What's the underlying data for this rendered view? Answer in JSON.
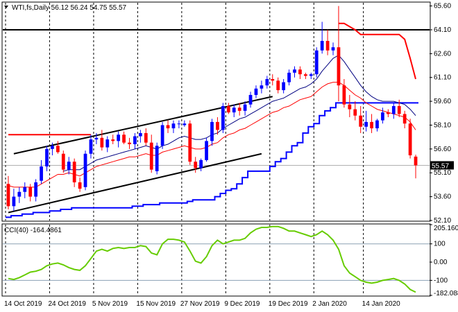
{
  "header": {
    "symbol_line": "WTI,fs,Daily  56.12 56.24 54.75 55.57",
    "cci_label": "CCI(40) -164.4861"
  },
  "chart_data": [
    {
      "type": "candlestick",
      "title": "WTI,fs,Daily",
      "last_ohlc": {
        "open": 56.12,
        "high": 56.24,
        "low": 54.75,
        "close": 55.57
      },
      "ylim": [
        52.1,
        65.8
      ],
      "y_ticks": [
        "65.60",
        "64.10",
        "62.60",
        "61.10",
        "59.60",
        "58.10",
        "56.60",
        "55.10",
        "53.60",
        "52.10"
      ],
      "x_ticks": [
        "14 Oct 2019",
        "24 Oct 2019",
        "5 Nov 2019",
        "15 Nov 2019",
        "27 Nov 2019",
        "9 Dec 2019",
        "19 Dec 2019",
        "2 Jan 2020",
        "14 Jan 2020"
      ],
      "price_tag": "55.57",
      "horizontal_level": 64.1,
      "candles": [
        [
          54.4,
          54.9,
          52.8,
          53.0
        ],
        [
          53.0,
          54.1,
          52.7,
          53.6
        ],
        [
          53.6,
          54.2,
          53.2,
          53.9
        ],
        [
          53.9,
          54.5,
          53.5,
          54.2
        ],
        [
          54.2,
          54.4,
          53.3,
          53.6
        ],
        [
          53.6,
          54.7,
          53.3,
          54.5
        ],
        [
          54.6,
          55.9,
          54.4,
          55.5
        ],
        [
          55.5,
          56.8,
          55.2,
          56.6
        ],
        [
          56.6,
          57.0,
          56.2,
          56.8
        ],
        [
          56.8,
          57.1,
          56.3,
          56.4
        ],
        [
          56.3,
          56.5,
          55.1,
          55.3
        ],
        [
          55.3,
          56.1,
          55.0,
          55.8
        ],
        [
          55.8,
          56.0,
          54.2,
          54.5
        ],
        [
          54.5,
          54.8,
          53.9,
          54.1
        ],
        [
          54.2,
          56.5,
          54.0,
          56.3
        ],
        [
          56.3,
          57.5,
          56.0,
          57.2
        ],
        [
          57.2,
          57.6,
          56.9,
          57.3
        ],
        [
          57.3,
          57.8,
          56.5,
          56.7
        ],
        [
          56.7,
          57.4,
          56.4,
          57.2
        ],
        [
          57.2,
          57.5,
          56.9,
          57.1
        ],
        [
          57.1,
          57.7,
          56.7,
          57.5
        ],
        [
          57.5,
          57.7,
          56.9,
          57.0
        ],
        [
          57.0,
          57.3,
          56.6,
          56.9
        ],
        [
          56.9,
          57.6,
          56.6,
          57.4
        ],
        [
          57.4,
          57.8,
          57.0,
          57.6
        ],
        [
          57.6,
          57.9,
          56.8,
          57.0
        ],
        [
          57.0,
          57.5,
          55.1,
          55.3
        ],
        [
          55.2,
          57.0,
          55.0,
          56.8
        ],
        [
          56.8,
          58.3,
          56.6,
          58.1
        ],
        [
          58.1,
          58.4,
          57.6,
          57.9
        ],
        [
          57.9,
          58.4,
          57.6,
          58.2
        ],
        [
          58.2,
          58.4,
          57.9,
          58.2
        ],
        [
          58.1,
          58.4,
          58.0,
          58.2
        ],
        [
          58.2,
          58.4,
          55.6,
          55.8
        ],
        [
          55.8,
          56.1,
          55.1,
          55.4
        ],
        [
          55.4,
          56.0,
          55.2,
          55.9
        ],
        [
          55.9,
          57.3,
          55.8,
          57.1
        ],
        [
          57.1,
          58.5,
          56.8,
          58.3
        ],
        [
          58.3,
          58.6,
          57.5,
          57.8
        ],
        [
          57.8,
          59.5,
          57.6,
          59.3
        ],
        [
          59.3,
          59.5,
          58.8,
          58.9
        ],
        [
          58.9,
          59.4,
          58.6,
          59.2
        ],
        [
          59.2,
          59.5,
          58.7,
          59.0
        ],
        [
          59.0,
          59.6,
          58.7,
          59.4
        ],
        [
          59.4,
          60.2,
          59.2,
          60.0
        ],
        [
          60.0,
          60.6,
          59.8,
          60.4
        ],
        [
          60.4,
          60.9,
          60.1,
          60.6
        ],
        [
          60.6,
          61.2,
          60.4,
          61.0
        ],
        [
          61.0,
          61.3,
          60.6,
          60.9
        ],
        [
          60.9,
          61.1,
          60.1,
          60.3
        ],
        [
          60.3,
          61.0,
          60.1,
          60.8
        ],
        [
          60.8,
          61.6,
          60.6,
          61.4
        ],
        [
          61.4,
          61.8,
          61.1,
          61.6
        ],
        [
          61.6,
          61.8,
          61.0,
          61.3
        ],
        [
          61.3,
          61.4,
          61.0,
          61.2
        ],
        [
          61.2,
          61.4,
          61.0,
          61.3
        ],
        [
          61.3,
          63.0,
          61.1,
          62.8
        ],
        [
          62.8,
          64.6,
          62.6,
          63.4
        ],
        [
          63.4,
          64.1,
          62.5,
          62.8
        ],
        [
          62.8,
          63.3,
          62.5,
          63.0
        ],
        [
          63.0,
          65.6,
          59.6,
          60.6
        ],
        [
          60.6,
          61.0,
          59.2,
          59.4
        ],
        [
          59.4,
          60.0,
          58.6,
          59.1
        ],
        [
          59.1,
          59.6,
          58.4,
          58.7
        ],
        [
          58.7,
          59.3,
          57.6,
          58.0
        ],
        [
          58.0,
          59.0,
          57.7,
          58.3
        ],
        [
          58.3,
          58.8,
          57.6,
          57.9
        ],
        [
          57.9,
          58.5,
          57.7,
          58.4
        ],
        [
          58.4,
          59.2,
          58.2,
          58.9
        ],
        [
          58.9,
          59.1,
          58.6,
          58.8
        ],
        [
          58.8,
          59.5,
          58.5,
          59.3
        ],
        [
          59.3,
          59.7,
          58.6,
          58.8
        ],
        [
          58.8,
          59.0,
          57.9,
          58.2
        ],
        [
          58.2,
          58.5,
          56.0,
          56.2
        ],
        [
          56.12,
          56.24,
          54.75,
          55.57
        ]
      ],
      "series": [
        {
          "color": "#ff0000",
          "values": [
            54.3,
            54.2,
            54.2,
            54.2,
            54.2,
            54.2,
            54.4,
            54.6,
            54.8,
            55.0,
            55.0,
            55.1,
            55.0,
            54.9,
            55.1,
            55.3,
            55.5,
            55.6,
            55.7,
            55.8,
            55.9,
            56.0,
            56.1,
            56.1,
            56.2,
            56.3,
            56.2,
            56.2,
            56.4,
            56.5,
            56.6,
            56.7,
            56.8,
            56.7,
            56.6,
            56.6,
            56.7,
            56.9,
            57.0,
            57.3,
            57.5,
            57.6,
            57.8,
            57.9,
            58.1,
            58.3,
            58.5,
            58.7,
            58.9,
            59.0,
            59.2,
            59.3,
            59.5,
            59.7,
            59.8,
            59.9,
            60.2,
            60.5,
            60.7,
            60.8,
            60.8,
            60.6,
            60.3,
            60.0,
            59.8,
            59.5,
            59.3,
            59.1,
            59.0,
            58.9,
            58.8,
            58.7,
            58.6,
            58.3,
            57.8
          ]
        },
        {
          "color": "#000080",
          "values": [
            null,
            null,
            null,
            null,
            null,
            null,
            null,
            null,
            null,
            null,
            55.2,
            55.3,
            55.3,
            55.3,
            55.5,
            55.7,
            55.9,
            56.0,
            56.1,
            56.2,
            56.3,
            56.4,
            56.5,
            56.6,
            56.7,
            56.8,
            56.7,
            56.6,
            56.8,
            56.9,
            57.1,
            57.3,
            57.4,
            57.3,
            57.2,
            57.2,
            57.3,
            57.5,
            57.6,
            57.9,
            58.1,
            58.3,
            58.5,
            58.6,
            58.8,
            59.0,
            59.2,
            59.4,
            59.6,
            59.7,
            59.8,
            60.0,
            60.2,
            60.4,
            60.5,
            60.7,
            61.0,
            61.5,
            61.9,
            62.3,
            62.5,
            62.1,
            61.6,
            61.1,
            60.6,
            60.2,
            59.9,
            59.7,
            59.6,
            59.6,
            59.6,
            59.5,
            59.4,
            59.1,
            58.7
          ]
        },
        {
          "color": "#0000ff",
          "values": [
            null,
            null,
            null,
            null,
            null,
            null,
            null,
            null,
            null,
            null,
            null,
            null,
            null,
            null,
            null,
            null,
            null,
            null,
            null,
            null,
            null,
            null,
            null,
            null,
            null,
            null,
            null,
            null,
            null,
            null,
            null,
            null,
            null,
            null,
            null,
            null,
            null,
            null,
            null,
            null,
            null,
            null,
            null,
            null,
            null,
            null,
            null,
            null,
            null,
            null,
            null,
            null,
            null,
            null,
            null,
            null,
            null,
            null,
            null,
            null,
            null,
            null,
            null,
            null,
            null,
            null,
            null,
            null,
            null,
            null,
            null,
            null,
            null,
            null,
            null
          ]
        },
        {
          "color": "#ff0000",
          "values": [
            57.5,
            57.5,
            57.5,
            57.5,
            57.5,
            57.5,
            57.5,
            57.5,
            57.5,
            57.5,
            57.5,
            57.5,
            57.5,
            57.5,
            57.5,
            57.5,
            null,
            null,
            null,
            null,
            null,
            null,
            null,
            null,
            null,
            null,
            null,
            null,
            null,
            null,
            null,
            null,
            null,
            null,
            null,
            null,
            null,
            null,
            null,
            null,
            null,
            null,
            null,
            null,
            null,
            null,
            null,
            null,
            null,
            null,
            null,
            null,
            null,
            null,
            null,
            null,
            null,
            null,
            null,
            null,
            64.5,
            64.5,
            64.3,
            64.1,
            63.8,
            63.8,
            63.8,
            63.8,
            63.8,
            63.8,
            63.8,
            63.8,
            63.5,
            62.3,
            61.0
          ]
        }
      ],
      "support_line": [
        52.3,
        52.4,
        52.4,
        52.5,
        52.5,
        52.6,
        52.6,
        52.6,
        52.7,
        52.7,
        52.8,
        52.8,
        52.9,
        52.9,
        52.9,
        52.9,
        52.9,
        52.9,
        52.9,
        52.9,
        52.9,
        52.9,
        52.9,
        53.0,
        53.0,
        53.1,
        53.1,
        53.1,
        53.2,
        53.2,
        53.2,
        53.2,
        53.2,
        53.3,
        53.4,
        53.4,
        53.4,
        53.4,
        53.6,
        53.8,
        54.0,
        54.1,
        54.4,
        54.8,
        55.2,
        55.2,
        55.2,
        55.2,
        55.5,
        55.8,
        56.0,
        56.4,
        56.8,
        57.0,
        57.6,
        58.0,
        58.2,
        58.7,
        59.0,
        59.2,
        59.5,
        59.5,
        59.5,
        59.5,
        59.5,
        59.5,
        59.5,
        59.5,
        59.5,
        59.5,
        59.5,
        59.5,
        59.5,
        59.5,
        59.5
      ],
      "channel_upper": {
        "from": [
          1,
          56.3
        ],
        "to": [
          48,
          59.9
        ]
      },
      "channel_lower": {
        "from": [
          0,
          52.6
        ],
        "to": [
          46,
          56.3
        ]
      }
    },
    {
      "type": "line",
      "title": "CCI(40)",
      "last_value": -164.4861,
      "ylim": [
        -182.088,
        205.1609
      ],
      "y_ticks": [
        "205.1609",
        "100",
        "0.00",
        "-100",
        "-182.088"
      ],
      "levels": [
        100,
        -100
      ],
      "series": [
        {
          "color": "#66cc00",
          "values": [
            -90,
            -95,
            -85,
            -70,
            -55,
            -50,
            -40,
            -20,
            -10,
            -5,
            -15,
            -30,
            -40,
            -45,
            -20,
            20,
            60,
            70,
            60,
            75,
            80,
            75,
            80,
            80,
            90,
            85,
            50,
            40,
            100,
            125,
            125,
            120,
            110,
            60,
            5,
            -5,
            30,
            90,
            120,
            100,
            110,
            120,
            120,
            130,
            160,
            180,
            190,
            190,
            195,
            195,
            185,
            170,
            170,
            160,
            150,
            140,
            150,
            170,
            150,
            120,
            70,
            -20,
            -60,
            -80,
            -100,
            -110,
            -115,
            -110,
            -100,
            -95,
            -90,
            -100,
            -120,
            -150,
            -164.4861
          ]
        }
      ]
    }
  ]
}
